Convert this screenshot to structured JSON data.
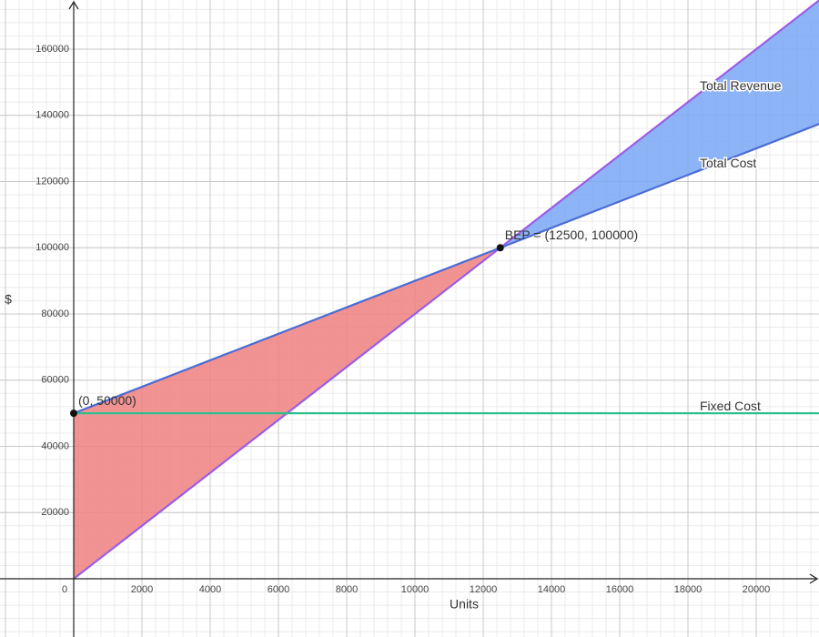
{
  "chart_data": {
    "type": "line",
    "x_label": "Units",
    "y_label": "$",
    "x": [
      0,
      12500,
      22000
    ],
    "series": [
      {
        "name": "Total Revenue",
        "color": "#9b5de5",
        "values": [
          0,
          100000,
          176000
        ]
      },
      {
        "name": "Total Cost",
        "color": "#4a6cd4",
        "values": [
          50000,
          100000,
          138000
        ]
      },
      {
        "name": "Fixed Cost",
        "color": "#2ebf91",
        "values": [
          50000,
          50000,
          50000
        ]
      }
    ],
    "points": [
      {
        "label": "BEP = (12500, 100000)",
        "x": 12500,
        "y": 100000
      },
      {
        "label": "(0, 50000)",
        "x": 0,
        "y": 50000
      }
    ],
    "loss_color": "#f08080",
    "profit_color": "#7aa7f7",
    "xlim": [
      -2160,
      21840
    ],
    "ylim": [
      -17595,
      174845
    ],
    "xticks": [
      0,
      2000,
      4000,
      6000,
      8000,
      10000,
      12000,
      14000,
      16000,
      18000,
      20000
    ],
    "yticks": [
      20000,
      40000,
      60000,
      80000,
      100000,
      120000,
      140000,
      160000
    ],
    "grid": true
  }
}
